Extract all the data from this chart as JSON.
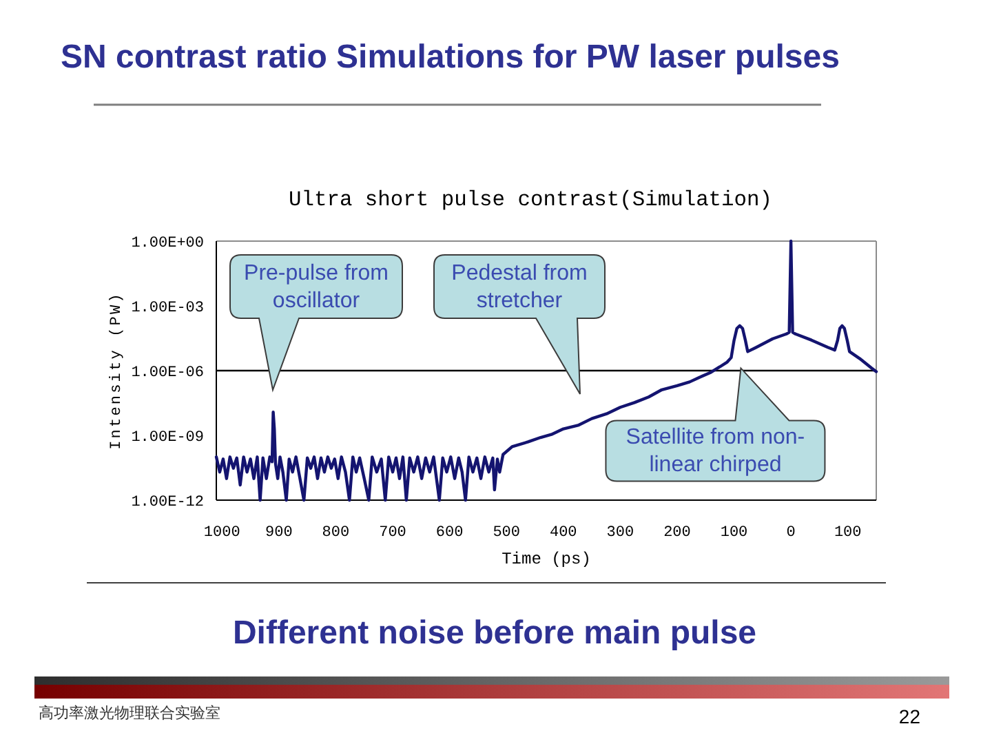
{
  "chart_data": {
    "type": "line",
    "title": "SN contrast ratio Simulations for PW laser pulses",
    "subtitle": "Ultra short pulse contrast(Simulation)",
    "xlabel": "Time (ps)",
    "ylabel": "Intensity (PW)",
    "log": true,
    "xlim": [
      1010,
      -150
    ],
    "xticks": [
      1000,
      900,
      800,
      700,
      600,
      500,
      400,
      300,
      200,
      100,
      0,
      {
        "value": -100,
        "label": "100"
      }
    ],
    "ylim": [
      1e-12,
      1
    ],
    "yticks": [
      {
        "value": 1,
        "label": "1.00E+00"
      },
      {
        "value": 0.001,
        "label": "1.00E-03"
      },
      {
        "value": 1e-06,
        "label": "1.00E-06"
      },
      {
        "value": 1e-09,
        "label": "1.00E-09"
      },
      {
        "value": 1e-12,
        "label": "1.00E-12"
      }
    ],
    "ref_lines": [
      {
        "axis": "y",
        "value": 1e-06,
        "color": "#000000"
      }
    ],
    "x": [
      1010,
      1004,
      998,
      992,
      986,
      980,
      974,
      968,
      962,
      956,
      950,
      944,
      938,
      933,
      928,
      922,
      916,
      912,
      910,
      908,
      906,
      902,
      898,
      893,
      887,
      882,
      876,
      870,
      863,
      856,
      850,
      844,
      838,
      832,
      826,
      820,
      814,
      808,
      802,
      796,
      790,
      783,
      776,
      770,
      764,
      758,
      750,
      742,
      736,
      728,
      720,
      713,
      707,
      700,
      694,
      688,
      682,
      676,
      670,
      663,
      656,
      649,
      642,
      635,
      628,
      618,
      612,
      605,
      598,
      591,
      584,
      578,
      572,
      566,
      559,
      552,
      545,
      538,
      531,
      524,
      521,
      516,
      512,
      506,
      490,
      462,
      440,
      421,
      400,
      373,
      350,
      324,
      300,
      275,
      250,
      227,
      200,
      178,
      160,
      142,
      125,
      112,
      105,
      100,
      95,
      90,
      85,
      80,
      76,
      61,
      32,
      8,
      3,
      0,
      -3,
      -8,
      -36,
      -65,
      -77,
      -82,
      -86,
      -90,
      -94,
      -99,
      -103,
      -121,
      -142,
      -150
    ],
    "series": [
      {
        "color": "#141470",
        "values": [
          1e-10,
          2e-11,
          8e-11,
          1e-11,
          1e-10,
          3e-11,
          9e-11,
          5e-12,
          1e-10,
          2e-11,
          8e-11,
          1e-11,
          1e-10,
          1e-12,
          9e-11,
          1e-11,
          1e-10,
          6e-11,
          1.2e-08,
          2e-09,
          5e-11,
          1e-11,
          1e-10,
          2e-11,
          1e-12,
          8e-11,
          2e-11,
          1e-10,
          1e-11,
          1e-12,
          9e-11,
          3e-11,
          1e-10,
          1e-11,
          9e-11,
          2e-11,
          1e-10,
          3e-11,
          8e-11,
          1e-11,
          1e-10,
          2e-11,
          1e-12,
          1e-10,
          2e-11,
          9e-11,
          1e-11,
          1e-12,
          1e-10,
          2e-11,
          8e-11,
          1e-12,
          1e-10,
          2e-11,
          9e-11,
          1e-11,
          1e-10,
          1e-12,
          9e-11,
          2e-11,
          1e-10,
          1e-11,
          9e-11,
          2e-11,
          1e-10,
          1e-12,
          9e-11,
          2e-11,
          1e-10,
          1e-11,
          9e-11,
          2e-11,
          1e-12,
          1e-10,
          2e-11,
          9e-11,
          1e-11,
          1e-10,
          2e-11,
          9e-11,
          3e-12,
          8e-11,
          2e-11,
          1.3e-10,
          3e-10,
          5e-10,
          8e-10,
          1.1e-09,
          2e-09,
          3e-09,
          6e-09,
          1e-08,
          2e-08,
          3.3e-08,
          6e-08,
          1.3e-07,
          2e-07,
          3e-07,
          5e-07,
          8e-07,
          1.5e-06,
          2.5e-06,
          4e-06,
          2.5e-05,
          9e-05,
          0.00012,
          9e-05,
          2.5e-05,
          7.6e-06,
          1.2e-05,
          3e-05,
          5e-05,
          6e-05,
          1,
          6e-05,
          5e-05,
          2.6e-05,
          1.2e-05,
          9e-06,
          2.5e-05,
          9e-05,
          0.00012,
          9e-05,
          2.5e-05,
          7.6e-06,
          3.6e-06,
          1.3e-06,
          9e-07
        ]
      }
    ],
    "annotations": [
      "Pre-pulse from oscillator",
      "Pedestal from stretcher",
      {
        "text": "Satellite from non-linear chirped",
        "x": 88,
        "y": 1.3e-06
      },
      "Different noise before main pulse",
      "高功率激光物理联合实验室",
      "22"
    ]
  }
}
